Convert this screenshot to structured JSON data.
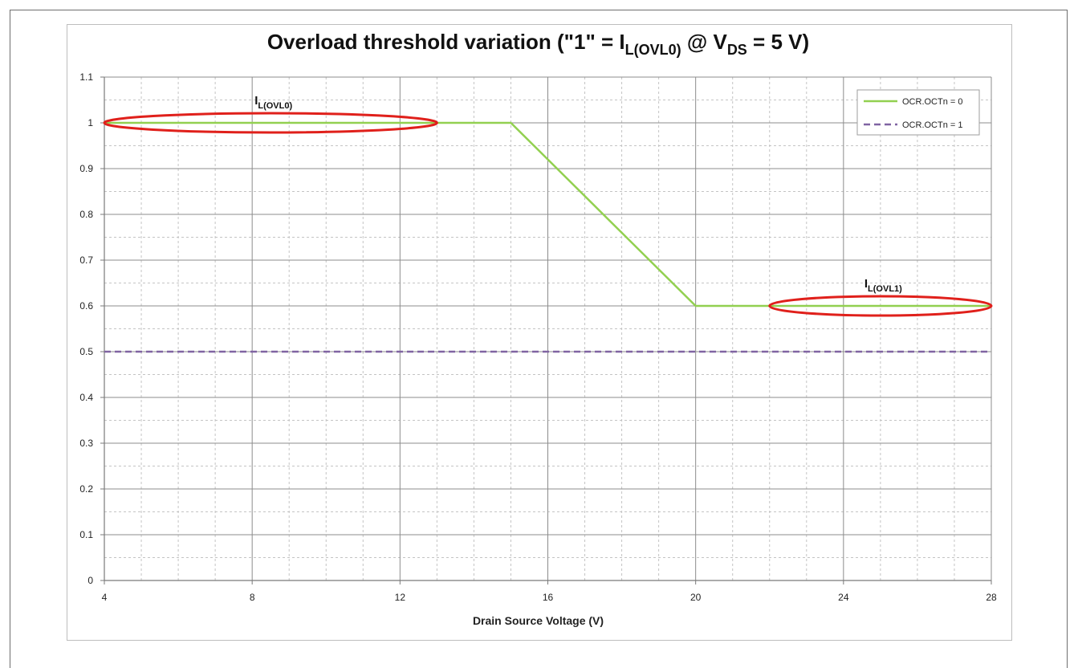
{
  "chart_data": {
    "type": "line",
    "title": {
      "parts": [
        {
          "text": "Overload threshold variation (\"1\" = I",
          "sub": false
        },
        {
          "text": "L(OVL0)",
          "sub": true
        },
        {
          "text": " @ V",
          "sub": false
        },
        {
          "text": "DS",
          "sub": true
        },
        {
          "text": " = 5 V)",
          "sub": false
        }
      ]
    },
    "xlabel": "Drain Source Voltage (V)",
    "ylabel": "",
    "xlim": [
      4,
      28
    ],
    "ylim": [
      0,
      1.1
    ],
    "xticks": [
      "4",
      "8",
      "12",
      "16",
      "20",
      "24",
      "28"
    ],
    "yticks": [
      "0",
      "0.1",
      "0.2",
      "0.3",
      "0.4",
      "0.5",
      "0.6",
      "0.7",
      "0.8",
      "0.9",
      "1",
      "1.1"
    ],
    "grid": true,
    "legend_position": "top-right",
    "series": [
      {
        "name": "OCR.OCTn = 0",
        "color": "#92d050",
        "dash": "solid",
        "x": [
          4,
          15,
          20,
          28
        ],
        "y": [
          1,
          1,
          0.6,
          0.6
        ]
      },
      {
        "name": "OCR.OCTn = 1",
        "color": "#8064a2",
        "dash": "dashed",
        "x": [
          4,
          28
        ],
        "y": [
          0.5,
          0.5
        ]
      }
    ],
    "annotations": [
      {
        "label_main": "I",
        "label_sub": "L(OVL0)",
        "x_center": 8.5,
        "y_center": 1,
        "x_span": [
          4,
          13
        ],
        "color": "#e0201b"
      },
      {
        "label_main": "I",
        "label_sub": "L(OVL1)",
        "x_center": 25,
        "y_center": 0.6,
        "x_span": [
          22,
          28
        ],
        "color": "#e0201b"
      }
    ]
  }
}
